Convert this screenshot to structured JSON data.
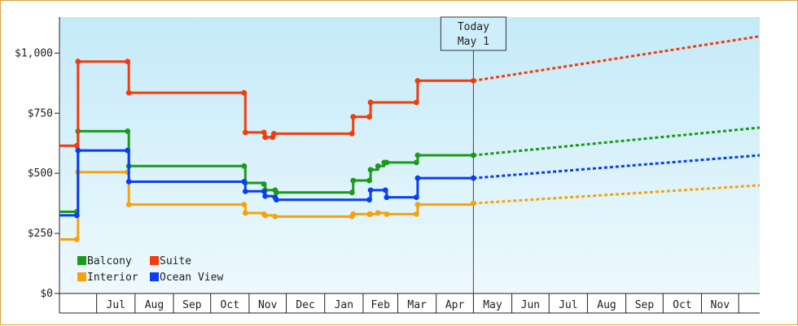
{
  "chart_data": {
    "type": "line",
    "title": "",
    "xlabel": "",
    "ylabel": "",
    "ylim": [
      0,
      1150
    ],
    "y_ticks": [
      {
        "value": 0,
        "label": "$0"
      },
      {
        "value": 250,
        "label": "$250"
      },
      {
        "value": 500,
        "label": "$500"
      },
      {
        "value": 750,
        "label": "$750"
      },
      {
        "value": 1000,
        "label": "$1,000"
      }
    ],
    "x_range": [
      "2022-06-01",
      "2023-12-18"
    ],
    "month_labels": [
      {
        "start": "2022-07-01",
        "end": "2022-07-31",
        "label": "Jul"
      },
      {
        "start": "2022-08-01",
        "end": "2022-08-31",
        "label": "Aug"
      },
      {
        "start": "2022-09-01",
        "end": "2022-09-30",
        "label": "Sep"
      },
      {
        "start": "2022-10-01",
        "end": "2022-10-31",
        "label": "Oct"
      },
      {
        "start": "2022-11-01",
        "end": "2022-11-30",
        "label": "Nov"
      },
      {
        "start": "2022-12-01",
        "end": "2022-12-31",
        "label": "Dec"
      },
      {
        "start": "2023-01-01",
        "end": "2023-01-31",
        "label": "Jan"
      },
      {
        "start": "2023-02-01",
        "end": "2023-02-28",
        "label": "Feb"
      },
      {
        "start": "2023-03-01",
        "end": "2023-03-31",
        "label": "Mar"
      },
      {
        "start": "2023-04-01",
        "end": "2023-04-30",
        "label": "Apr"
      },
      {
        "start": "2023-05-01",
        "end": "2023-05-31",
        "label": "May"
      },
      {
        "start": "2023-06-01",
        "end": "2023-06-30",
        "label": "Jun"
      },
      {
        "start": "2023-07-01",
        "end": "2023-07-31",
        "label": "Jul"
      },
      {
        "start": "2023-08-01",
        "end": "2023-08-31",
        "label": "Aug"
      },
      {
        "start": "2023-09-01",
        "end": "2023-09-30",
        "label": "Sep"
      },
      {
        "start": "2023-10-01",
        "end": "2023-10-31",
        "label": "Oct"
      },
      {
        "start": "2023-11-01",
        "end": "2023-11-30",
        "label": "Nov"
      }
    ],
    "today": {
      "date": "2023-05-01",
      "line1": "Today",
      "line2": "May 1"
    },
    "forecast_end": "2023-12-18",
    "series": [
      {
        "name": "Balcony",
        "color": "#1a9a1a",
        "points": [
          [
            "2022-06-01",
            340
          ],
          [
            "2022-06-15",
            340
          ],
          [
            "2022-06-16",
            675
          ],
          [
            "2022-07-26",
            675
          ],
          [
            "2022-07-27",
            530
          ],
          [
            "2022-10-28",
            530
          ],
          [
            "2022-10-29",
            460
          ],
          [
            "2022-11-13",
            455
          ],
          [
            "2022-11-14",
            430
          ],
          [
            "2022-11-22",
            430
          ],
          [
            "2022-11-23",
            420
          ],
          [
            "2023-01-23",
            420
          ],
          [
            "2023-01-24",
            470
          ],
          [
            "2023-02-06",
            470
          ],
          [
            "2023-02-07",
            515
          ],
          [
            "2023-02-13",
            530
          ],
          [
            "2023-02-18",
            545
          ],
          [
            "2023-02-20",
            545
          ],
          [
            "2023-03-16",
            545
          ],
          [
            "2023-03-17",
            575
          ],
          [
            "2023-05-01",
            575
          ]
        ],
        "forecast": [
          [
            "2023-05-01",
            575
          ],
          [
            "2023-12-18",
            690
          ]
        ]
      },
      {
        "name": "Suite",
        "color": "#f23c0c",
        "points": [
          [
            "2022-06-01",
            615
          ],
          [
            "2022-06-15",
            615
          ],
          [
            "2022-06-16",
            965
          ],
          [
            "2022-07-26",
            965
          ],
          [
            "2022-07-27",
            835
          ],
          [
            "2022-10-28",
            835
          ],
          [
            "2022-10-29",
            670
          ],
          [
            "2022-11-13",
            670
          ],
          [
            "2022-11-14",
            650
          ],
          [
            "2022-11-20",
            650
          ],
          [
            "2022-11-21",
            665
          ],
          [
            "2023-01-23",
            665
          ],
          [
            "2023-01-24",
            735
          ],
          [
            "2023-02-06",
            735
          ],
          [
            "2023-02-07",
            795
          ],
          [
            "2023-03-16",
            795
          ],
          [
            "2023-03-17",
            885
          ],
          [
            "2023-05-01",
            885
          ]
        ],
        "forecast": [
          [
            "2023-05-01",
            885
          ],
          [
            "2023-12-18",
            1070
          ]
        ]
      },
      {
        "name": "Interior",
        "color": "#f5a30c",
        "points": [
          [
            "2022-06-01",
            225
          ],
          [
            "2022-06-15",
            225
          ],
          [
            "2022-06-16",
            505
          ],
          [
            "2022-07-26",
            505
          ],
          [
            "2022-07-27",
            370
          ],
          [
            "2022-10-28",
            370
          ],
          [
            "2022-10-29",
            335
          ],
          [
            "2022-11-13",
            330
          ],
          [
            "2022-11-14",
            325
          ],
          [
            "2022-11-22",
            320
          ],
          [
            "2023-01-23",
            320
          ],
          [
            "2023-01-24",
            330
          ],
          [
            "2023-02-06",
            330
          ],
          [
            "2023-02-07",
            330
          ],
          [
            "2023-02-13",
            335
          ],
          [
            "2023-02-20",
            330
          ],
          [
            "2023-03-16",
            330
          ],
          [
            "2023-03-17",
            370
          ],
          [
            "2023-05-01",
            375
          ]
        ],
        "forecast": [
          [
            "2023-05-01",
            375
          ],
          [
            "2023-12-18",
            450
          ]
        ]
      },
      {
        "name": "Ocean View",
        "color": "#0a3ef0",
        "points": [
          [
            "2022-06-01",
            325
          ],
          [
            "2022-06-15",
            325
          ],
          [
            "2022-06-16",
            595
          ],
          [
            "2022-07-26",
            595
          ],
          [
            "2022-07-27",
            465
          ],
          [
            "2022-10-28",
            465
          ],
          [
            "2022-10-29",
            425
          ],
          [
            "2022-11-13",
            425
          ],
          [
            "2022-11-14",
            405
          ],
          [
            "2022-11-22",
            400
          ],
          [
            "2022-11-23",
            390
          ],
          [
            "2023-02-06",
            390
          ],
          [
            "2023-02-07",
            430
          ],
          [
            "2023-02-19",
            430
          ],
          [
            "2023-02-20",
            400
          ],
          [
            "2023-03-16",
            400
          ],
          [
            "2023-03-17",
            480
          ],
          [
            "2023-05-01",
            480
          ]
        ],
        "forecast": [
          [
            "2023-05-01",
            480
          ],
          [
            "2023-12-18",
            575
          ]
        ]
      }
    ],
    "legend": {
      "placement": "bottom-left",
      "items": [
        {
          "label": "Balcony",
          "color": "#1a9a1a"
        },
        {
          "label": "Suite",
          "color": "#f23c0c"
        },
        {
          "label": "Interior",
          "color": "#f5a30c"
        },
        {
          "label": "Ocean View",
          "color": "#0a3ef0"
        }
      ]
    },
    "background": {
      "top": "#c4eaf8",
      "bottom": "#eef9fd"
    }
  }
}
